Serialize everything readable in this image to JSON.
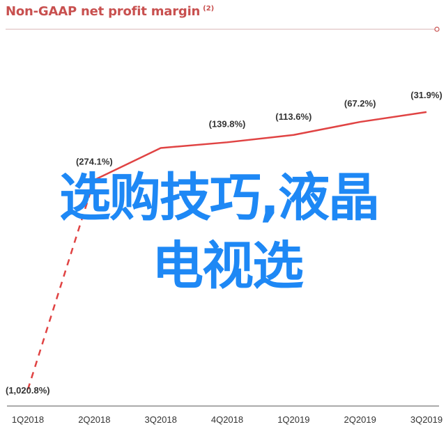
{
  "chart_data": {
    "type": "line",
    "title": "Non-GAAP net profit margin",
    "title_note": "(2)",
    "categories": [
      "1Q2018",
      "2Q2018",
      "3Q2018",
      "4Q2018",
      "1Q2019",
      "2Q2019",
      "3Q2019"
    ],
    "values": [
      -1020.8,
      -274.1,
      -160,
      -139.8,
      -113.6,
      -67.2,
      -31.9
    ],
    "point_labels": [
      "(1,020.8%)",
      "(274.1%)",
      "",
      "(139.8%)",
      "(113.6%)",
      "(67.2%)",
      "(31.9%)"
    ],
    "dashed_segment": [
      0,
      1
    ],
    "ylim": [
      -1080,
      0
    ],
    "grid": false,
    "legend": "none",
    "colors": {
      "line": "#e04343",
      "title": "#c8504f",
      "axis": "#555555",
      "label": "#333333"
    }
  },
  "overlay": {
    "line1": "选购技巧,液晶",
    "line2": "电视选"
  }
}
